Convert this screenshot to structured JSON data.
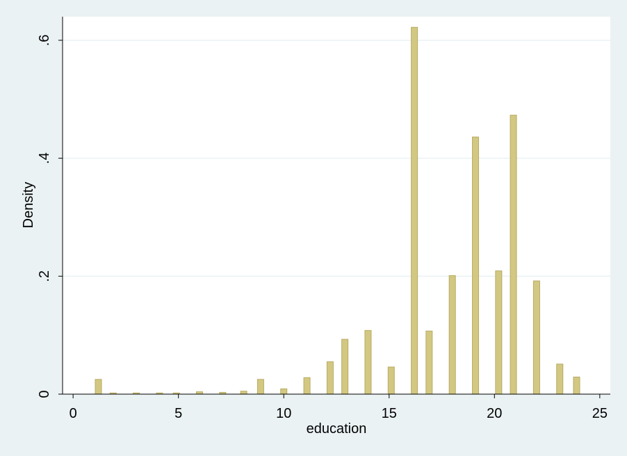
{
  "chart_data": {
    "type": "bar",
    "xlabel": "education",
    "ylabel": "Density",
    "xlim": [
      -0.5,
      25.5
    ],
    "ylim": [
      0,
      0.64
    ],
    "x_ticks": [
      0,
      5,
      10,
      15,
      20,
      25
    ],
    "x_tick_labels": [
      "0",
      "5",
      "10",
      "15",
      "20",
      "25"
    ],
    "y_ticks": [
      0,
      0.2,
      0.4,
      0.6
    ],
    "y_tick_labels": [
      "0",
      ".2",
      ".4",
      ".6"
    ],
    "grid": "horizontal",
    "legend": "none",
    "bar_color": "#d3c882",
    "bar_edge_color": "#b7ab62",
    "plot_background": "#ffffff",
    "page_background": "#eaf2f3",
    "gridline_color": "#eaf2f3",
    "bars": [
      {
        "x": 1.2,
        "y": 0.025
      },
      {
        "x": 1.9,
        "y": 0.002
      },
      {
        "x": 3.0,
        "y": 0.002
      },
      {
        "x": 4.1,
        "y": 0.002
      },
      {
        "x": 4.9,
        "y": 0.002
      },
      {
        "x": 6.0,
        "y": 0.004
      },
      {
        "x": 7.1,
        "y": 0.003
      },
      {
        "x": 8.1,
        "y": 0.005
      },
      {
        "x": 8.9,
        "y": 0.025
      },
      {
        "x": 10.0,
        "y": 0.009
      },
      {
        "x": 11.1,
        "y": 0.028
      },
      {
        "x": 12.2,
        "y": 0.055
      },
      {
        "x": 12.9,
        "y": 0.093
      },
      {
        "x": 14.0,
        "y": 0.108
      },
      {
        "x": 15.1,
        "y": 0.046
      },
      {
        "x": 16.2,
        "y": 0.622
      },
      {
        "x": 16.9,
        "y": 0.107
      },
      {
        "x": 18.0,
        "y": 0.201
      },
      {
        "x": 19.1,
        "y": 0.436
      },
      {
        "x": 20.2,
        "y": 0.209
      },
      {
        "x": 20.9,
        "y": 0.473
      },
      {
        "x": 22.0,
        "y": 0.192
      },
      {
        "x": 23.1,
        "y": 0.051
      },
      {
        "x": 23.9,
        "y": 0.029
      }
    ]
  }
}
